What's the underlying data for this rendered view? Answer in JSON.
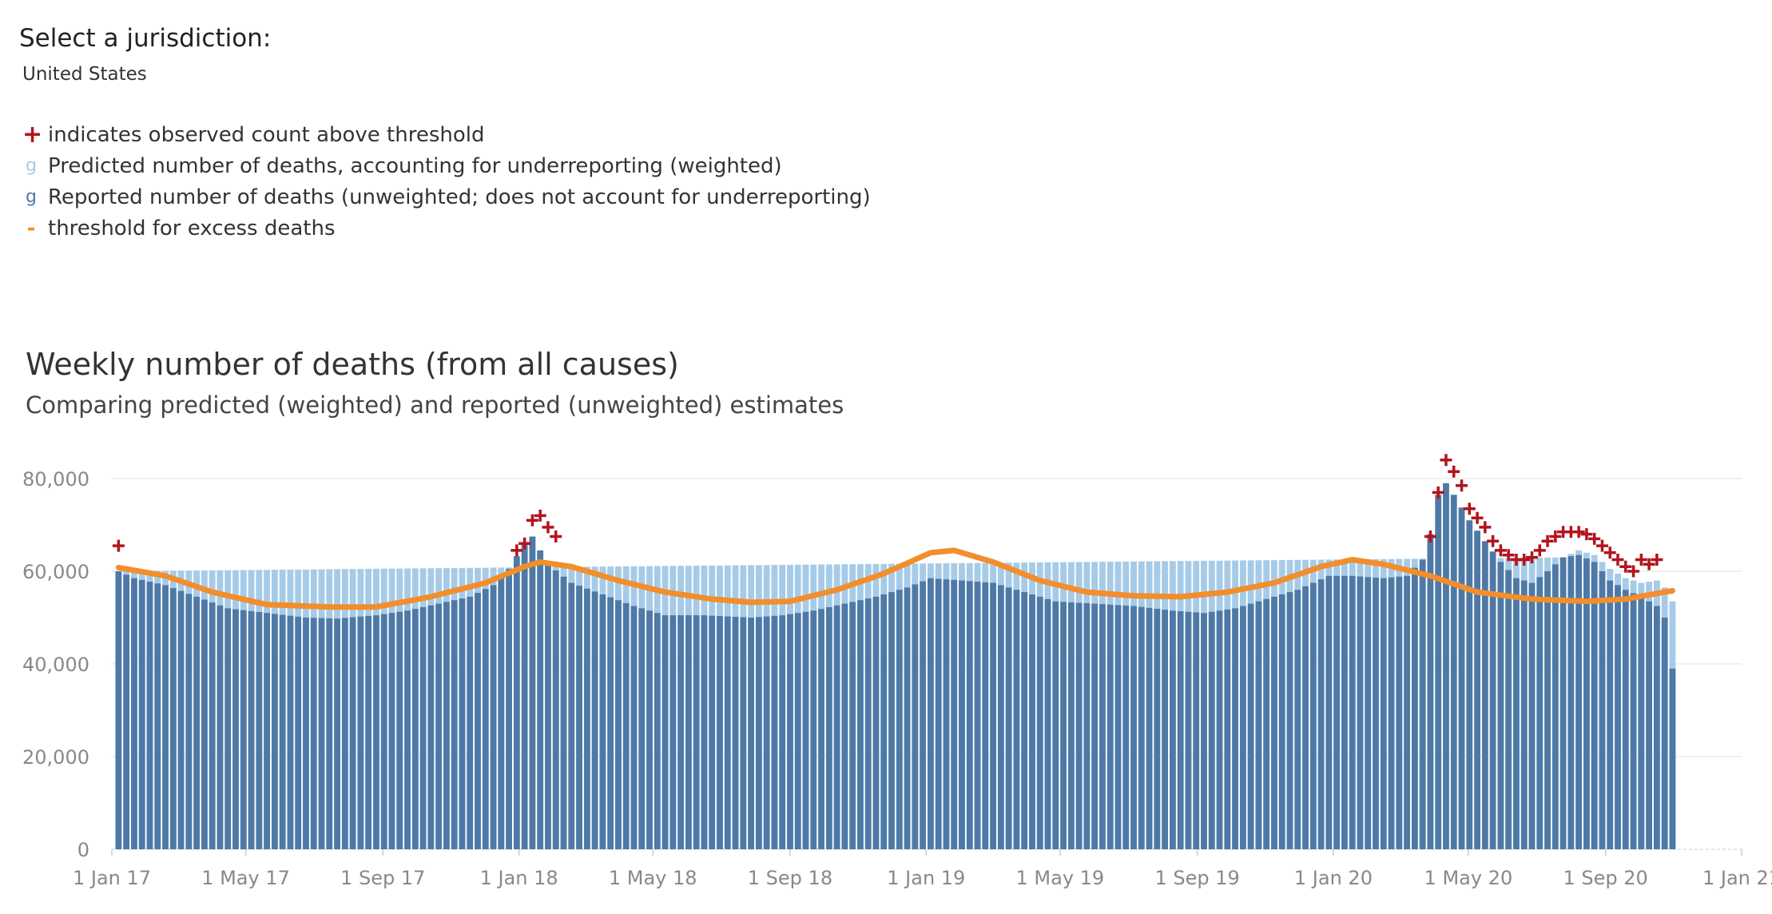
{
  "filter": {
    "title": "Select a jurisdiction:",
    "value": "United States"
  },
  "legend": [
    {
      "symbol": "+",
      "label": "indicates observed count above threshold",
      "color": "#b3141d"
    },
    {
      "symbol": "g",
      "label": "Predicted number of deaths, accounting for underreporting (weighted)",
      "color": "#a6cbe8"
    },
    {
      "symbol": "g",
      "label": "Reported number of deaths (unweighted; does not account for underreporting)",
      "color": "#4e79a7"
    },
    {
      "symbol": "-",
      "label": "threshold for excess deaths",
      "color": "#f28e2b"
    }
  ],
  "chart_data": {
    "type": "bar",
    "title": "Weekly number of deaths (from all causes)",
    "subtitle": "Comparing predicted (weighted) and reported (unweighted) estimates",
    "xlabel": "",
    "ylabel": "",
    "ylim": [
      0,
      85000
    ],
    "yticks": [
      0,
      20000,
      40000,
      60000,
      80000
    ],
    "ytick_labels": [
      "0",
      "20,000",
      "40,000",
      "60,000",
      "80,000"
    ],
    "x_start": "2017-01-01",
    "x_end": "2021-01-01",
    "xticks": [
      {
        "date": "2017-01-01",
        "label": "1 Jan 17"
      },
      {
        "date": "2017-05-01",
        "label": "1 May 17"
      },
      {
        "date": "2017-09-01",
        "label": "1 Sep 17"
      },
      {
        "date": "2018-01-01",
        "label": "1 Jan 18"
      },
      {
        "date": "2018-05-01",
        "label": "1 May 18"
      },
      {
        "date": "2018-09-01",
        "label": "1 Sep 18"
      },
      {
        "date": "2019-01-01",
        "label": "1 Jan 19"
      },
      {
        "date": "2019-05-01",
        "label": "1 May 19"
      },
      {
        "date": "2019-09-01",
        "label": "1 Sep 19"
      },
      {
        "date": "2020-01-01",
        "label": "1 Jan 20"
      },
      {
        "date": "2020-05-01",
        "label": "1 May 20"
      },
      {
        "date": "2020-09-01",
        "label": "1 Sep 20"
      },
      {
        "date": "2021-01-01",
        "label": "1 Jan 21"
      }
    ],
    "grid": true,
    "colors": {
      "reported": "#4e79a7",
      "predicted": "#a6cbe8",
      "threshold": "#f28e2b",
      "above": "#b3141d"
    },
    "series": [
      {
        "name": "Reported number of deaths (unweighted; does not account for underreporting)",
        "anchors": [
          [
            "2017-01-07",
            60000
          ],
          [
            "2017-01-21",
            58500
          ],
          [
            "2017-02-18",
            57000
          ],
          [
            "2017-03-18",
            54500
          ],
          [
            "2017-04-15",
            52000
          ],
          [
            "2017-05-20",
            51000
          ],
          [
            "2017-06-24",
            50000
          ],
          [
            "2017-07-22",
            49800
          ],
          [
            "2017-08-26",
            50500
          ],
          [
            "2017-09-23",
            51500
          ],
          [
            "2017-10-21",
            53000
          ],
          [
            "2017-11-18",
            54500
          ],
          [
            "2017-12-09",
            57000
          ],
          [
            "2017-12-23",
            60500
          ],
          [
            "2018-01-06",
            66000
          ],
          [
            "2018-01-13",
            67500
          ],
          [
            "2018-01-27",
            61500
          ],
          [
            "2018-02-17",
            57500
          ],
          [
            "2018-03-17",
            55000
          ],
          [
            "2018-04-14",
            52500
          ],
          [
            "2018-05-12",
            50500
          ],
          [
            "2018-06-16",
            50500
          ],
          [
            "2018-07-28",
            50000
          ],
          [
            "2018-08-25",
            50500
          ],
          [
            "2018-09-22",
            51500
          ],
          [
            "2018-10-20",
            53000
          ],
          [
            "2018-11-17",
            54500
          ],
          [
            "2018-12-15",
            56500
          ],
          [
            "2019-01-05",
            58500
          ],
          [
            "2019-02-02",
            58000
          ],
          [
            "2019-03-02",
            57500
          ],
          [
            "2019-03-30",
            55500
          ],
          [
            "2019-04-27",
            53500
          ],
          [
            "2019-06-01",
            53000
          ],
          [
            "2019-07-06",
            52500
          ],
          [
            "2019-08-10",
            51500
          ],
          [
            "2019-09-07",
            51000
          ],
          [
            "2019-10-05",
            52000
          ],
          [
            "2019-11-02",
            54000
          ],
          [
            "2019-11-30",
            56000
          ],
          [
            "2019-12-28",
            59000
          ],
          [
            "2020-01-18",
            59000
          ],
          [
            "2020-02-15",
            58500
          ],
          [
            "2020-03-07",
            59000
          ],
          [
            "2020-03-21",
            62500
          ],
          [
            "2020-03-28",
            68000
          ],
          [
            "2020-04-04",
            76500
          ],
          [
            "2020-04-11",
            79000
          ],
          [
            "2020-04-18",
            76500
          ],
          [
            "2020-05-02",
            71000
          ],
          [
            "2020-05-16",
            66500
          ],
          [
            "2020-05-30",
            62000
          ],
          [
            "2020-06-13",
            58500
          ],
          [
            "2020-06-27",
            57500
          ],
          [
            "2020-07-11",
            60000
          ],
          [
            "2020-07-25",
            63000
          ],
          [
            "2020-08-08",
            63500
          ],
          [
            "2020-08-22",
            62000
          ],
          [
            "2020-09-05",
            58000
          ],
          [
            "2020-09-19",
            56000
          ],
          [
            "2020-10-03",
            54500
          ],
          [
            "2020-10-17",
            52500
          ],
          [
            "2020-10-24",
            50000
          ],
          [
            "2020-10-31",
            39000
          ]
        ]
      },
      {
        "name": "Predicted number of deaths, accounting for underreporting (weighted)",
        "anchors": [
          [
            "2017-01-07",
            60000
          ],
          [
            "2020-07-25",
            63000
          ],
          [
            "2020-08-08",
            64500
          ],
          [
            "2020-08-22",
            63500
          ],
          [
            "2020-09-05",
            60500
          ],
          [
            "2020-09-19",
            58500
          ],
          [
            "2020-10-03",
            57500
          ],
          [
            "2020-10-17",
            58000
          ],
          [
            "2020-10-24",
            56500
          ],
          [
            "2020-10-31",
            53500
          ]
        ]
      },
      {
        "name": "threshold for excess deaths",
        "anchors": [
          [
            "2017-01-07",
            60800
          ],
          [
            "2017-02-18",
            59000
          ],
          [
            "2017-04-01",
            55500
          ],
          [
            "2017-05-20",
            52800
          ],
          [
            "2017-07-15",
            52300
          ],
          [
            "2017-08-26",
            52300
          ],
          [
            "2017-10-14",
            54500
          ],
          [
            "2017-12-02",
            57500
          ],
          [
            "2018-01-06",
            61000
          ],
          [
            "2018-01-20",
            62000
          ],
          [
            "2018-02-17",
            61000
          ],
          [
            "2018-03-31",
            58000
          ],
          [
            "2018-05-12",
            55500
          ],
          [
            "2018-06-23",
            54000
          ],
          [
            "2018-07-28",
            53300
          ],
          [
            "2018-09-01",
            53500
          ],
          [
            "2018-10-13",
            56000
          ],
          [
            "2018-11-24",
            59500
          ],
          [
            "2019-01-05",
            64000
          ],
          [
            "2019-01-26",
            64500
          ],
          [
            "2019-03-02",
            62000
          ],
          [
            "2019-04-13",
            58000
          ],
          [
            "2019-05-25",
            55500
          ],
          [
            "2019-07-06",
            54700
          ],
          [
            "2019-08-17",
            54500
          ],
          [
            "2019-09-28",
            55500
          ],
          [
            "2019-11-09",
            57500
          ],
          [
            "2019-12-21",
            61000
          ],
          [
            "2020-01-18",
            62500
          ],
          [
            "2020-02-15",
            61500
          ],
          [
            "2020-03-28",
            59000
          ],
          [
            "2020-05-09",
            55500
          ],
          [
            "2020-06-27",
            54000
          ],
          [
            "2020-08-15",
            53500
          ],
          [
            "2020-09-19",
            54000
          ],
          [
            "2020-10-31",
            55800
          ]
        ]
      }
    ],
    "above_threshold_points": [
      [
        "2017-01-07",
        65500
      ],
      [
        "2017-12-30",
        64500
      ],
      [
        "2018-01-06",
        66000
      ],
      [
        "2018-01-13",
        71000
      ],
      [
        "2018-01-20",
        72000
      ],
      [
        "2018-01-27",
        69500
      ],
      [
        "2018-02-03",
        67500
      ],
      [
        "2020-03-28",
        67500
      ],
      [
        "2020-04-04",
        77000
      ],
      [
        "2020-04-11",
        84000
      ],
      [
        "2020-04-18",
        81500
      ],
      [
        "2020-04-25",
        78500
      ],
      [
        "2020-05-02",
        73500
      ],
      [
        "2020-05-09",
        71500
      ],
      [
        "2020-05-16",
        69500
      ],
      [
        "2020-05-23",
        66500
      ],
      [
        "2020-05-30",
        64500
      ],
      [
        "2020-06-06",
        63500
      ],
      [
        "2020-06-13",
        62500
      ],
      [
        "2020-06-20",
        62500
      ],
      [
        "2020-06-27",
        63000
      ],
      [
        "2020-07-04",
        64500
      ],
      [
        "2020-07-11",
        66500
      ],
      [
        "2020-07-18",
        67500
      ],
      [
        "2020-07-25",
        68500
      ],
      [
        "2020-08-01",
        68500
      ],
      [
        "2020-08-08",
        68500
      ],
      [
        "2020-08-15",
        68000
      ],
      [
        "2020-08-22",
        67000
      ],
      [
        "2020-08-29",
        65500
      ],
      [
        "2020-09-05",
        64000
      ],
      [
        "2020-09-12",
        62500
      ],
      [
        "2020-09-19",
        61000
      ],
      [
        "2020-09-26",
        60000
      ],
      [
        "2020-10-03",
        62500
      ],
      [
        "2020-10-10",
        61500
      ],
      [
        "2020-10-17",
        62500
      ]
    ]
  }
}
